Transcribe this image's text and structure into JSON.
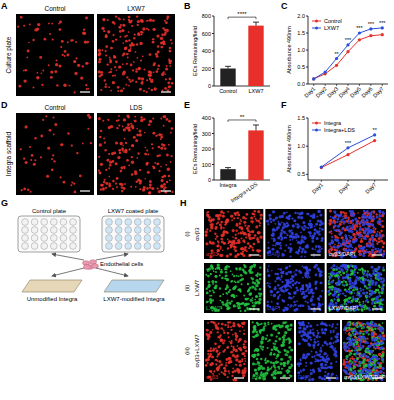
{
  "panel_labels": [
    "A",
    "B",
    "C",
    "D",
    "E",
    "F",
    "G",
    "H"
  ],
  "images": [
    {
      "row_label": "Culture plate",
      "captions": [
        "Control",
        "LXW7"
      ],
      "color": "#e8302a"
    },
    {
      "row_label": "Integra scaffold",
      "captions": [
        "Control",
        "LDS"
      ],
      "color": "#e8302a"
    }
  ],
  "chart_data": [
    {
      "type": "bar",
      "categories": [
        "Control",
        "LXW7"
      ],
      "values": [
        200,
        690
      ],
      "errors": [
        25,
        40
      ],
      "colors": [
        "#222222",
        "#e8302a"
      ],
      "ylabel": "ECs Remaining/field",
      "ylim": [
        0,
        800
      ],
      "yticks": [
        0,
        200,
        400,
        600,
        800
      ],
      "significance": "****"
    },
    {
      "type": "line",
      "categories": [
        "Day1",
        "Day2",
        "Day3",
        "Day4",
        "Day5",
        "Day6",
        "Day7"
      ],
      "series": [
        {
          "name": "Control",
          "color": "#e8302a",
          "values": [
            0.15,
            0.3,
            0.55,
            0.95,
            1.3,
            1.42,
            1.45
          ]
        },
        {
          "name": "LXW7",
          "color": "#2a4fd8",
          "values": [
            0.15,
            0.35,
            0.75,
            1.15,
            1.5,
            1.62,
            1.65
          ]
        }
      ],
      "ylabel": "Absorbance 490nm",
      "ylim": [
        0,
        2
      ],
      "yticks": [
        {
          "value": 0,
          "label": "0.0"
        },
        {
          "value": 0.5,
          "label": "0.5"
        },
        {
          "value": 1,
          "label": "1.0"
        },
        {
          "value": 1.5,
          "label": "1.5"
        },
        {
          "value": 2,
          "label": "2.0"
        }
      ],
      "legend": "top-left",
      "marker": "circle",
      "significance": [
        {
          "category": "Day3",
          "text": "**"
        },
        {
          "category": "Day4",
          "text": "***"
        },
        {
          "category": "Day5",
          "text": "***"
        },
        {
          "category": "Day6",
          "text": "***"
        },
        {
          "category": "Day7",
          "text": "***"
        }
      ]
    },
    {
      "type": "bar",
      "categories": [
        "Integra",
        "Integra+LDS"
      ],
      "values": [
        70,
        320
      ],
      "errors": [
        10,
        35
      ],
      "colors": [
        "#222222",
        "#e8302a"
      ],
      "ylabel": "ECs Remaining/field",
      "ylim": [
        0,
        400
      ],
      "yticks": [
        0,
        100,
        200,
        300,
        400
      ],
      "significance": "**"
    },
    {
      "type": "line",
      "categories": [
        "Day1",
        "Day4",
        "Day7"
      ],
      "series": [
        {
          "name": "Integra",
          "color": "#e8302a",
          "values": [
            0.62,
            0.85,
            1.1
          ]
        },
        {
          "name": "Integra+LDS",
          "color": "#2a4fd8",
          "values": [
            0.63,
            0.97,
            1.2
          ]
        }
      ],
      "ylabel": "Absorbance 490nm",
      "ylim": [
        0.4,
        1.5
      ],
      "yticks": [
        0.5,
        {
          "value": 1,
          "label": "1.0"
        },
        1.5
      ],
      "legend": "top-left",
      "marker": "circle",
      "significance": [
        {
          "category": "Day4",
          "text": "***"
        },
        {
          "category": "Day7",
          "text": "**"
        }
      ]
    }
  ],
  "diagram": {
    "wells": [
      "Control plate",
      "LXW7 coated plate"
    ],
    "cells": "Endothelial cells",
    "scaffolds": [
      "Unmodified Integra",
      "LXW7-modified Integra"
    ]
  },
  "staining": [
    {
      "label": "(i)",
      "name": "αvβ3",
      "channels": [
        {
          "text": "αvβ3",
          "colors": [
            "#e8302a"
          ]
        },
        {
          "text": "DAPI",
          "colors": [
            "#3040e0"
          ]
        },
        {
          "text": "αvβ3/DAPI",
          "colors": [
            "#e8302a",
            "#3040e0"
          ]
        }
      ]
    },
    {
      "label": "(ii)",
      "name": "LXW7",
      "channels": [
        {
          "text": "LXW7",
          "colors": [
            "#22c040"
          ]
        },
        {
          "text": "DAPI",
          "colors": [
            "#3040e0"
          ]
        },
        {
          "text": "LXW7/DAPI",
          "colors": [
            "#22c040",
            "#3040e0"
          ]
        }
      ]
    },
    {
      "label": "(iii)",
      "name": "αvβ3+LXW7",
      "channels": [
        {
          "text": "αvβ3",
          "colors": [
            "#e8302a"
          ]
        },
        {
          "text": "LXW7",
          "colors": [
            "#22c040"
          ]
        },
        {
          "text": "DAPI",
          "colors": [
            "#3040e0"
          ]
        },
        {
          "text": "αvβ3/LXW7/DAPI",
          "colors": [
            "#e8302a",
            "#22c040",
            "#3040e0"
          ]
        }
      ]
    }
  ]
}
